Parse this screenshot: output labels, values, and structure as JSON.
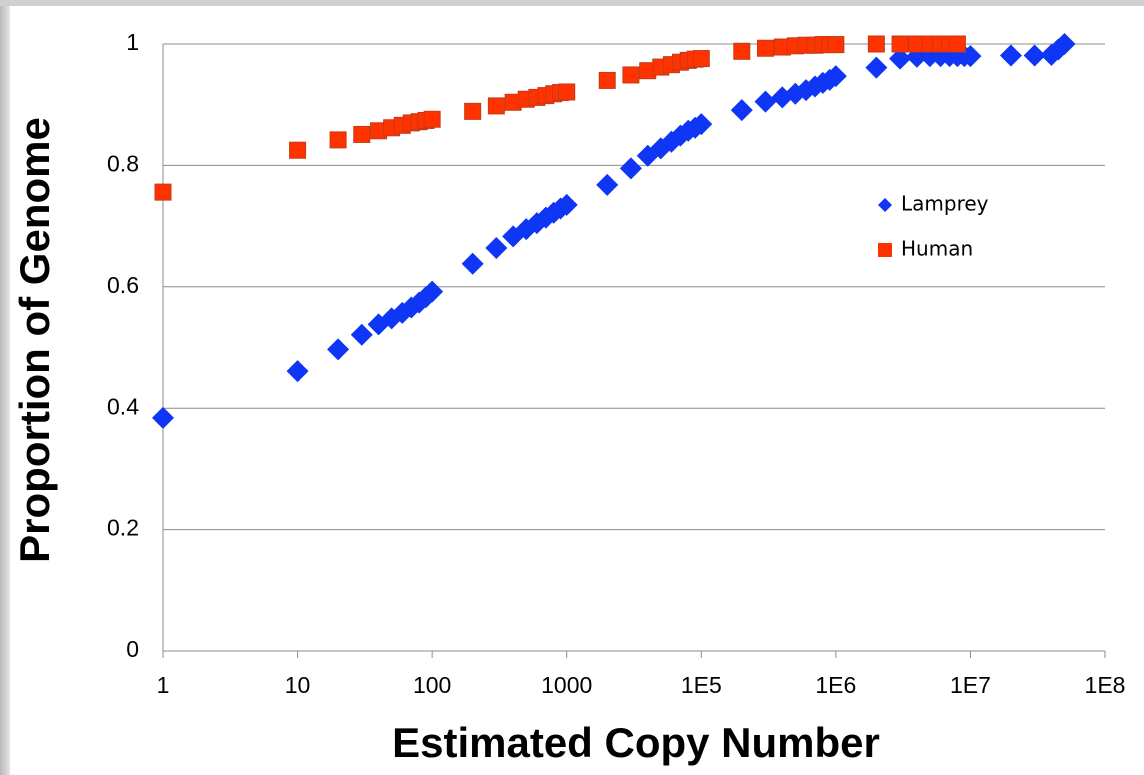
{
  "chart_data": {
    "type": "scatter",
    "xlabel": "Estimated Copy Number",
    "ylabel": "Proportion of Genome",
    "xscale": "log",
    "xlim": [
      1,
      100000000
    ],
    "xticks": [
      1,
      10,
      100,
      1000,
      {
        "value": 100000,
        "label": "1E5"
      },
      {
        "value": 1000000,
        "label": "1E6"
      },
      {
        "value": 10000000,
        "label": "1E7"
      },
      {
        "value": 100000000,
        "label": "1E8"
      }
    ],
    "ylim": [
      0,
      1
    ],
    "yticks": [
      0,
      0.2,
      0.4,
      0.6,
      0.8,
      1
    ],
    "grid": true,
    "legend": "right",
    "series": [
      {
        "name": "Lamprey",
        "color": "#0f35f5",
        "marker": "diamond",
        "x": [
          1,
          10,
          20,
          30,
          40,
          50,
          60,
          70,
          80,
          90,
          100,
          200,
          300,
          400,
          500,
          600,
          700,
          800,
          900,
          1000,
          4000,
          9000,
          16000,
          25000,
          36000,
          49000,
          64000,
          81000,
          100000,
          200000,
          300000,
          400000,
          500000,
          600000,
          700000,
          800000,
          900000,
          1000000,
          2000000,
          3000000,
          4000000,
          5000000,
          6000000,
          7000000,
          8000000,
          9000000,
          10000000,
          20000000,
          30000000,
          40000000,
          45000000,
          50000000
        ],
        "values": [
          0.384,
          0.461,
          0.497,
          0.521,
          0.538,
          0.548,
          0.557,
          0.566,
          0.574,
          0.583,
          0.592,
          0.638,
          0.664,
          0.683,
          0.695,
          0.705,
          0.714,
          0.722,
          0.729,
          0.735,
          0.768,
          0.795,
          0.816,
          0.828,
          0.839,
          0.849,
          0.857,
          0.862,
          0.868,
          0.891,
          0.905,
          0.912,
          0.918,
          0.924,
          0.93,
          0.936,
          0.941,
          0.947,
          0.961,
          0.976,
          0.979,
          0.98,
          0.98,
          0.98,
          0.98,
          0.98,
          0.98,
          0.981,
          0.981,
          0.982,
          0.991,
          1.0
        ]
      },
      {
        "name": "Human",
        "color": "#ff3300",
        "marker": "square",
        "x": [
          1,
          10,
          20,
          30,
          40,
          50,
          60,
          70,
          80,
          90,
          100,
          200,
          300,
          400,
          500,
          600,
          700,
          800,
          900,
          1000,
          4000,
          9000,
          16000,
          25000,
          36000,
          49000,
          64000,
          81000,
          100000,
          200000,
          300000,
          400000,
          500000,
          600000,
          700000,
          800000,
          900000,
          1000000,
          2000000,
          3000000,
          4000000,
          5000000,
          6000000,
          7000000,
          8000000
        ],
        "values": [
          0.756,
          0.825,
          0.842,
          0.851,
          0.857,
          0.862,
          0.866,
          0.87,
          0.872,
          0.874,
          0.876,
          0.889,
          0.898,
          0.904,
          0.909,
          0.912,
          0.915,
          0.918,
          0.92,
          0.921,
          0.94,
          0.949,
          0.956,
          0.962,
          0.966,
          0.97,
          0.973,
          0.975,
          0.976,
          0.988,
          0.993,
          0.995,
          0.997,
          0.998,
          0.998,
          0.999,
          0.999,
          0.999,
          1.0,
          1.0,
          1.0,
          1.0,
          1.0,
          1.0,
          1.0
        ]
      }
    ]
  }
}
